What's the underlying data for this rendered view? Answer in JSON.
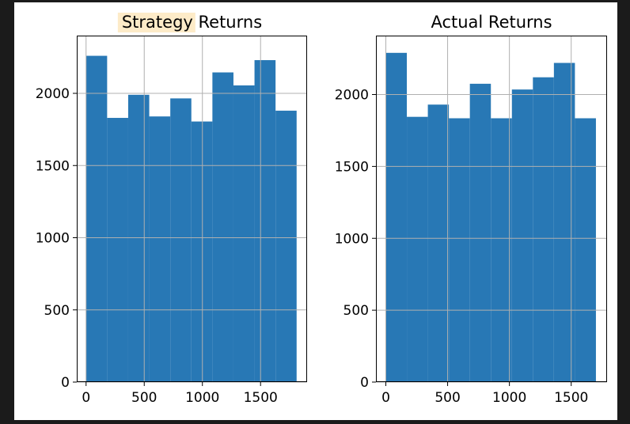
{
  "chart_data": [
    {
      "type": "histogram",
      "title": "Strategy Returns",
      "title_highlight": "Strategy",
      "title_rest": " Returns",
      "bin_edges": [
        0,
        181,
        362,
        543,
        724,
        905,
        1086,
        1267,
        1448,
        1629,
        1810
      ],
      "counts": [
        2260,
        1830,
        1990,
        1840,
        1965,
        1805,
        2145,
        2055,
        2230,
        1880
      ],
      "xlim": [
        -80,
        1900
      ],
      "ylim": [
        0,
        2400
      ],
      "xticks": [
        0,
        500,
        1000,
        1500
      ],
      "yticks": [
        0,
        500,
        1000,
        1500,
        2000
      ],
      "grid": true,
      "color": "#2878b5"
    },
    {
      "type": "histogram",
      "title": "Actual Returns",
      "bin_edges": [
        0,
        170,
        340,
        510,
        680,
        850,
        1020,
        1190,
        1360,
        1530,
        1700
      ],
      "counts": [
        2290,
        1845,
        1930,
        1835,
        2075,
        1835,
        2035,
        2120,
        2220,
        1835
      ],
      "xlim": [
        -80,
        1790
      ],
      "ylim": [
        0,
        2410
      ],
      "xticks": [
        0,
        500,
        1000,
        1500
      ],
      "yticks": [
        0,
        500,
        1000,
        1500,
        2000
      ],
      "grid": true,
      "color": "#2878b5"
    }
  ]
}
